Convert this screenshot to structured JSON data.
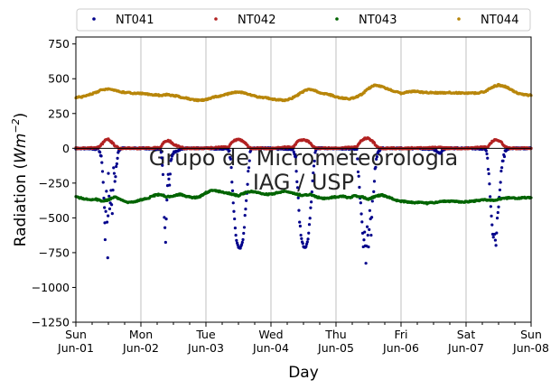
{
  "chart_data": {
    "type": "scatter",
    "xlabel": "Day",
    "ylabel": "Radiation",
    "ylabel_unit": "Wm",
    "ylabel_exp": "−2",
    "ylim": [
      -1250,
      800
    ],
    "xlim": [
      "2014-06-01",
      "2014-06-08"
    ],
    "yticks": [
      {
        "value": 750,
        "label": "750"
      },
      {
        "value": 500,
        "label": "500"
      },
      {
        "value": 250,
        "label": "250"
      },
      {
        "value": 0,
        "label": "0"
      },
      {
        "value": -250,
        "label": "−250"
      },
      {
        "value": -500,
        "label": "−500"
      },
      {
        "value": -750,
        "label": "−750"
      },
      {
        "value": -1000,
        "label": "−1000"
      },
      {
        "value": -1250,
        "label": "−1250"
      }
    ],
    "xticks": [
      {
        "day": 0,
        "line1": "Sun",
        "line2": "Jun-01"
      },
      {
        "day": 1,
        "line1": "Mon",
        "line2": "Jun-02"
      },
      {
        "day": 2,
        "line1": "Tue",
        "line2": "Jun-03"
      },
      {
        "day": 3,
        "line1": "Wed",
        "line2": "Jun-04"
      },
      {
        "day": 4,
        "line1": "Thu",
        "line2": "Jun-05"
      },
      {
        "day": 5,
        "line1": "Fri",
        "line2": "Jun-06"
      },
      {
        "day": 6,
        "line1": "Sat",
        "line2": "Jun-07"
      },
      {
        "day": 7,
        "line1": "Sun",
        "line2": "Jun-08"
      }
    ],
    "grid": "vertical",
    "legend_position": "top",
    "watermark": [
      "Grupo de Micrometeorologia",
      "IAG / USP"
    ],
    "series": [
      {
        "name": "NT041",
        "color": "#00008b",
        "points": [
          [
            0.0,
            0
          ],
          [
            0.35,
            -5
          ],
          [
            0.4,
            -90
          ],
          [
            0.42,
            -250
          ],
          [
            0.44,
            -430
          ],
          [
            0.45,
            -640
          ],
          [
            0.47,
            -300
          ],
          [
            0.49,
            -780
          ],
          [
            0.5,
            -200
          ],
          [
            0.52,
            -450
          ],
          [
            0.54,
            -320
          ],
          [
            0.56,
            -480
          ],
          [
            0.58,
            -150
          ],
          [
            0.6,
            -250
          ],
          [
            0.62,
            -120
          ],
          [
            0.66,
            -20
          ],
          [
            0.7,
            0
          ],
          [
            1.0,
            0
          ],
          [
            1.3,
            -5
          ],
          [
            1.32,
            -60
          ],
          [
            1.34,
            -200
          ],
          [
            1.36,
            -480
          ],
          [
            1.38,
            -660
          ],
          [
            1.4,
            -380
          ],
          [
            1.42,
            -180
          ],
          [
            1.44,
            -250
          ],
          [
            1.46,
            -90
          ],
          [
            1.5,
            -30
          ],
          [
            1.6,
            -10
          ],
          [
            1.68,
            0
          ],
          [
            2.0,
            0
          ],
          [
            2.35,
            -5
          ],
          [
            2.38,
            -80
          ],
          [
            2.41,
            -300
          ],
          [
            2.44,
            -520
          ],
          [
            2.47,
            -660
          ],
          [
            2.5,
            -715
          ],
          [
            2.53,
            -720
          ],
          [
            2.56,
            -680
          ],
          [
            2.59,
            -560
          ],
          [
            2.62,
            -380
          ],
          [
            2.65,
            -180
          ],
          [
            2.68,
            -30
          ],
          [
            2.7,
            0
          ],
          [
            3.0,
            0
          ],
          [
            3.35,
            -5
          ],
          [
            3.38,
            -80
          ],
          [
            3.41,
            -300
          ],
          [
            3.44,
            -520
          ],
          [
            3.47,
            -650
          ],
          [
            3.5,
            -705
          ],
          [
            3.53,
            -712
          ],
          [
            3.56,
            -680
          ],
          [
            3.59,
            -560
          ],
          [
            3.62,
            -380
          ],
          [
            3.65,
            -180
          ],
          [
            3.68,
            -30
          ],
          [
            3.7,
            0
          ],
          [
            4.0,
            0
          ],
          [
            4.32,
            -5
          ],
          [
            4.34,
            -150
          ],
          [
            4.37,
            -350
          ],
          [
            4.4,
            -520
          ],
          [
            4.42,
            -720
          ],
          [
            4.44,
            -620
          ],
          [
            4.46,
            -810
          ],
          [
            4.48,
            -560
          ],
          [
            4.5,
            -700
          ],
          [
            4.52,
            -430
          ],
          [
            4.54,
            -620
          ],
          [
            4.56,
            -380
          ],
          [
            4.58,
            -300
          ],
          [
            4.6,
            -150
          ],
          [
            4.64,
            -30
          ],
          [
            4.7,
            0
          ],
          [
            5.0,
            0
          ],
          [
            5.5,
            -5
          ],
          [
            5.6,
            -40
          ],
          [
            5.65,
            -10
          ],
          [
            5.7,
            0
          ],
          [
            6.0,
            0
          ],
          [
            6.3,
            -5
          ],
          [
            6.33,
            -80
          ],
          [
            6.36,
            -260
          ],
          [
            6.38,
            -420
          ],
          [
            6.4,
            -560
          ],
          [
            6.42,
            -640
          ],
          [
            6.44,
            -600
          ],
          [
            6.46,
            -690
          ],
          [
            6.48,
            -520
          ],
          [
            6.5,
            -420
          ],
          [
            6.52,
            -280
          ],
          [
            6.55,
            -120
          ],
          [
            6.6,
            -20
          ],
          [
            6.66,
            0
          ],
          [
            7.0,
            0
          ]
        ]
      },
      {
        "name": "NT042",
        "color": "#b22222",
        "points": [
          [
            0.0,
            0
          ],
          [
            0.35,
            5
          ],
          [
            0.4,
            30
          ],
          [
            0.45,
            55
          ],
          [
            0.5,
            65
          ],
          [
            0.55,
            45
          ],
          [
            0.6,
            20
          ],
          [
            0.66,
            0
          ],
          [
            1.0,
            0
          ],
          [
            1.3,
            5
          ],
          [
            1.35,
            40
          ],
          [
            1.4,
            55
          ],
          [
            1.45,
            50
          ],
          [
            1.5,
            30
          ],
          [
            1.6,
            10
          ],
          [
            1.68,
            0
          ],
          [
            2.0,
            0
          ],
          [
            2.35,
            10
          ],
          [
            2.4,
            45
          ],
          [
            2.45,
            58
          ],
          [
            2.5,
            62
          ],
          [
            2.55,
            58
          ],
          [
            2.6,
            42
          ],
          [
            2.65,
            12
          ],
          [
            2.7,
            0
          ],
          [
            3.0,
            0
          ],
          [
            3.35,
            10
          ],
          [
            3.4,
            45
          ],
          [
            3.45,
            58
          ],
          [
            3.5,
            62
          ],
          [
            3.55,
            55
          ],
          [
            3.6,
            42
          ],
          [
            3.65,
            12
          ],
          [
            3.7,
            0
          ],
          [
            4.0,
            0
          ],
          [
            4.32,
            10
          ],
          [
            4.38,
            50
          ],
          [
            4.44,
            70
          ],
          [
            4.5,
            75
          ],
          [
            4.55,
            55
          ],
          [
            4.6,
            30
          ],
          [
            4.66,
            0
          ],
          [
            5.0,
            0
          ],
          [
            5.45,
            3
          ],
          [
            5.55,
            8
          ],
          [
            5.65,
            3
          ],
          [
            5.7,
            0
          ],
          [
            6.0,
            0
          ],
          [
            6.33,
            10
          ],
          [
            6.38,
            40
          ],
          [
            6.44,
            60
          ],
          [
            6.5,
            58
          ],
          [
            6.55,
            40
          ],
          [
            6.6,
            10
          ],
          [
            6.66,
            0
          ],
          [
            7.0,
            0
          ]
        ]
      },
      {
        "name": "NT043",
        "color": "#006400",
        "points": [
          [
            0.0,
            -350
          ],
          [
            0.1,
            -360
          ],
          [
            0.2,
            -370
          ],
          [
            0.3,
            -365
          ],
          [
            0.4,
            -380
          ],
          [
            0.5,
            -370
          ],
          [
            0.6,
            -350
          ],
          [
            0.7,
            -370
          ],
          [
            0.8,
            -390
          ],
          [
            0.9,
            -385
          ],
          [
            1.0,
            -370
          ],
          [
            1.1,
            -360
          ],
          [
            1.2,
            -340
          ],
          [
            1.3,
            -330
          ],
          [
            1.4,
            -350
          ],
          [
            1.5,
            -340
          ],
          [
            1.6,
            -330
          ],
          [
            1.7,
            -345
          ],
          [
            1.8,
            -355
          ],
          [
            1.9,
            -350
          ],
          [
            2.0,
            -320
          ],
          [
            2.1,
            -300
          ],
          [
            2.2,
            -310
          ],
          [
            2.3,
            -320
          ],
          [
            2.4,
            -330
          ],
          [
            2.5,
            -340
          ],
          [
            2.6,
            -320
          ],
          [
            2.7,
            -310
          ],
          [
            2.8,
            -320
          ],
          [
            2.9,
            -330
          ],
          [
            3.0,
            -330
          ],
          [
            3.1,
            -320
          ],
          [
            3.2,
            -310
          ],
          [
            3.3,
            -320
          ],
          [
            3.4,
            -330
          ],
          [
            3.5,
            -340
          ],
          [
            3.6,
            -330
          ],
          [
            3.7,
            -350
          ],
          [
            3.8,
            -360
          ],
          [
            3.9,
            -355
          ],
          [
            4.0,
            -350
          ],
          [
            4.1,
            -345
          ],
          [
            4.2,
            -355
          ],
          [
            4.3,
            -340
          ],
          [
            4.4,
            -350
          ],
          [
            4.5,
            -365
          ],
          [
            4.6,
            -345
          ],
          [
            4.7,
            -335
          ],
          [
            4.8,
            -350
          ],
          [
            4.9,
            -370
          ],
          [
            5.0,
            -380
          ],
          [
            5.1,
            -385
          ],
          [
            5.2,
            -390
          ],
          [
            5.3,
            -390
          ],
          [
            5.4,
            -395
          ],
          [
            5.5,
            -390
          ],
          [
            5.6,
            -385
          ],
          [
            5.7,
            -380
          ],
          [
            5.8,
            -380
          ],
          [
            5.9,
            -385
          ],
          [
            6.0,
            -385
          ],
          [
            6.1,
            -380
          ],
          [
            6.2,
            -375
          ],
          [
            6.3,
            -370
          ],
          [
            6.4,
            -375
          ],
          [
            6.5,
            -365
          ],
          [
            6.6,
            -360
          ],
          [
            6.7,
            -355
          ],
          [
            6.8,
            -360
          ],
          [
            6.9,
            -355
          ],
          [
            7.0,
            -355
          ]
        ]
      },
      {
        "name": "NT044",
        "color": "#b8860b",
        "points": [
          [
            0.0,
            365
          ],
          [
            0.1,
            370
          ],
          [
            0.2,
            385
          ],
          [
            0.3,
            400
          ],
          [
            0.4,
            420
          ],
          [
            0.5,
            425
          ],
          [
            0.6,
            415
          ],
          [
            0.7,
            405
          ],
          [
            0.8,
            400
          ],
          [
            0.9,
            395
          ],
          [
            1.0,
            395
          ],
          [
            1.1,
            390
          ],
          [
            1.2,
            385
          ],
          [
            1.3,
            380
          ],
          [
            1.4,
            385
          ],
          [
            1.5,
            380
          ],
          [
            1.6,
            370
          ],
          [
            1.7,
            360
          ],
          [
            1.8,
            350
          ],
          [
            1.9,
            345
          ],
          [
            2.0,
            350
          ],
          [
            2.1,
            365
          ],
          [
            2.2,
            375
          ],
          [
            2.3,
            385
          ],
          [
            2.4,
            400
          ],
          [
            2.5,
            405
          ],
          [
            2.6,
            395
          ],
          [
            2.7,
            380
          ],
          [
            2.8,
            370
          ],
          [
            2.9,
            365
          ],
          [
            3.0,
            355
          ],
          [
            3.1,
            350
          ],
          [
            3.2,
            345
          ],
          [
            3.3,
            355
          ],
          [
            3.4,
            380
          ],
          [
            3.5,
            410
          ],
          [
            3.6,
            425
          ],
          [
            3.7,
            410
          ],
          [
            3.8,
            395
          ],
          [
            3.9,
            385
          ],
          [
            4.0,
            370
          ],
          [
            4.1,
            360
          ],
          [
            4.2,
            355
          ],
          [
            4.3,
            365
          ],
          [
            4.4,
            390
          ],
          [
            4.5,
            430
          ],
          [
            4.6,
            455
          ],
          [
            4.7,
            445
          ],
          [
            4.8,
            425
          ],
          [
            4.9,
            410
          ],
          [
            5.0,
            395
          ],
          [
            5.1,
            405
          ],
          [
            5.2,
            410
          ],
          [
            5.3,
            405
          ],
          [
            5.4,
            400
          ],
          [
            5.5,
            400
          ],
          [
            5.6,
            398
          ],
          [
            5.7,
            400
          ],
          [
            5.8,
            400
          ],
          [
            5.9,
            398
          ],
          [
            6.0,
            395
          ],
          [
            6.1,
            395
          ],
          [
            6.2,
            400
          ],
          [
            6.3,
            410
          ],
          [
            6.4,
            440
          ],
          [
            6.5,
            455
          ],
          [
            6.6,
            445
          ],
          [
            6.7,
            420
          ],
          [
            6.8,
            395
          ],
          [
            6.9,
            385
          ],
          [
            7.0,
            380
          ]
        ]
      }
    ]
  }
}
